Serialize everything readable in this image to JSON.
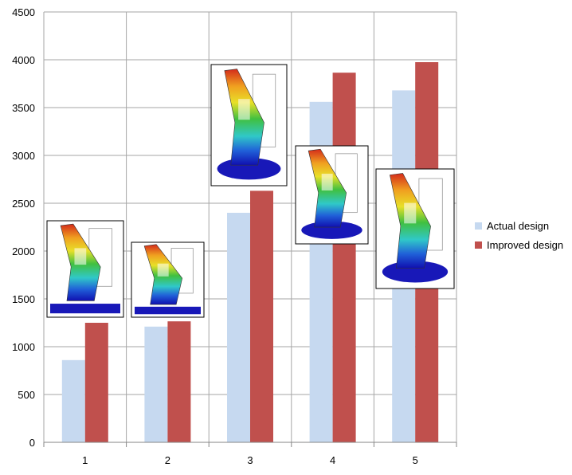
{
  "chart_data": {
    "type": "bar",
    "categories": [
      "1",
      "2",
      "3",
      "4",
      "5"
    ],
    "series": [
      {
        "name": "Actual design",
        "color": "#c6d9f0",
        "values": [
          860,
          1210,
          2400,
          3560,
          3680
        ]
      },
      {
        "name": "Improved design",
        "color": "#c0504d",
        "values": [
          1250,
          1265,
          2630,
          3865,
          3975
        ]
      }
    ],
    "ylim": [
      0,
      4500
    ],
    "yticks": [
      "0",
      "500",
      "1000",
      "1500",
      "2000",
      "2500",
      "3000",
      "3500",
      "4000",
      "4500"
    ],
    "grid": true,
    "legend_position": "right",
    "title": "",
    "xlabel": "",
    "ylabel": "",
    "annotations": [
      {
        "category": "1",
        "type": "fea-stress-plot-image"
      },
      {
        "category": "2",
        "type": "fea-stress-plot-image"
      },
      {
        "category": "3",
        "type": "fea-stress-plot-image"
      },
      {
        "category": "4",
        "type": "fea-stress-plot-image"
      },
      {
        "category": "5",
        "type": "fea-stress-plot-image"
      }
    ]
  }
}
